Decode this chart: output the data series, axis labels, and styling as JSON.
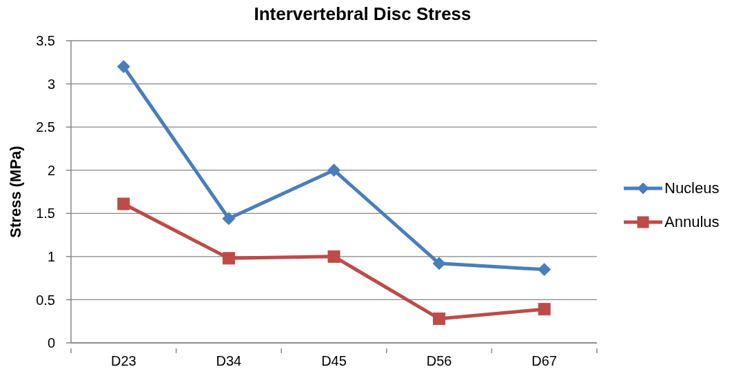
{
  "chart_data": {
    "type": "line",
    "title": "Intervertebral Disc Stress",
    "ylabel": "Stress (MPa)",
    "categories": [
      "D23",
      "D34",
      "D45",
      "D56",
      "D67"
    ],
    "series": [
      {
        "name": "Nucleus",
        "color": "#4a7ebb",
        "marker": "diamond",
        "values": [
          3.2,
          1.44,
          2.0,
          0.92,
          0.85
        ]
      },
      {
        "name": "Annulus",
        "color": "#be4b48",
        "marker": "square",
        "values": [
          1.61,
          0.98,
          1.0,
          0.28,
          0.39
        ]
      }
    ],
    "ylim": [
      0,
      3.5
    ],
    "yticks": [
      0,
      0.5,
      1,
      1.5,
      2,
      2.5,
      3,
      3.5
    ],
    "grid": "y",
    "legend": "right",
    "line_style": "solid"
  }
}
